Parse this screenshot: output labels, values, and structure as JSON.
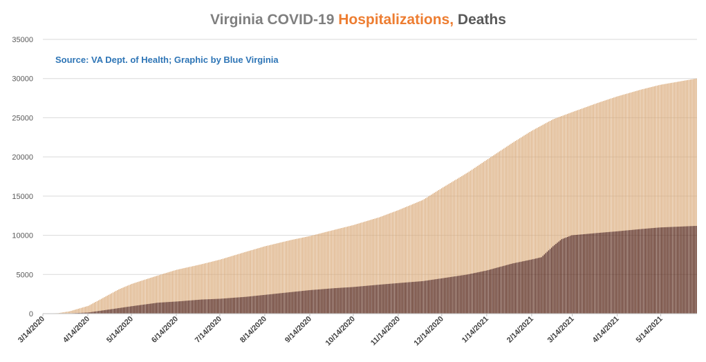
{
  "chart_data": {
    "type": "bar",
    "title_parts": [
      {
        "text": "Virginia COVID-19 ",
        "color": "#7f7f7f"
      },
      {
        "text": "Hospitalizations,",
        "color": "#ed7d31"
      },
      {
        "text": " Deaths",
        "color": "#595959"
      }
    ],
    "annotation": "Source: VA Dept. of Health; Graphic by Blue Virginia",
    "annotation_color": "#2e75b6",
    "x_start_date": "3/14/2020",
    "x_end_date": "6/8/2021",
    "x_tick_labels": [
      "3/14/2020",
      "4/14/2020",
      "5/14/2020",
      "6/14/2020",
      "7/14/2020",
      "8/14/2020",
      "9/14/2020",
      "10/14/2020",
      "11/14/2020",
      "12/14/2020",
      "1/14/2021",
      "2/14/2021",
      "3/14/2021",
      "4/14/2021",
      "5/14/2021"
    ],
    "ylim": [
      0,
      35000
    ],
    "y_ticks": [
      0,
      5000,
      10000,
      15000,
      20000,
      25000,
      30000,
      35000
    ],
    "grid": true,
    "series": [
      {
        "name": "Hospitalizations",
        "color": "#d9a876",
        "points": [
          [
            "3/14/2020",
            10
          ],
          [
            "3/24/2020",
            60
          ],
          [
            "4/1/2020",
            300
          ],
          [
            "4/14/2020",
            1000
          ],
          [
            "4/24/2020",
            2000
          ],
          [
            "5/5/2020",
            3100
          ],
          [
            "5/14/2020",
            3800
          ],
          [
            "5/24/2020",
            4400
          ],
          [
            "6/5/2020",
            5100
          ],
          [
            "6/14/2020",
            5600
          ],
          [
            "7/1/2020",
            6300
          ],
          [
            "7/14/2020",
            6900
          ],
          [
            "8/1/2020",
            7900
          ],
          [
            "8/14/2020",
            8600
          ],
          [
            "9/1/2020",
            9400
          ],
          [
            "9/14/2020",
            9900
          ],
          [
            "10/1/2020",
            10700
          ],
          [
            "10/14/2020",
            11300
          ],
          [
            "11/1/2020",
            12300
          ],
          [
            "11/14/2020",
            13200
          ],
          [
            "12/1/2020",
            14500
          ],
          [
            "12/14/2020",
            16000
          ],
          [
            "1/1/2021",
            18000
          ],
          [
            "1/14/2021",
            19600
          ],
          [
            "2/1/2021",
            21800
          ],
          [
            "2/14/2021",
            23300
          ],
          [
            "3/1/2021",
            24800
          ],
          [
            "3/14/2021",
            25700
          ],
          [
            "4/1/2021",
            26900
          ],
          [
            "4/14/2021",
            27700
          ],
          [
            "5/1/2021",
            28600
          ],
          [
            "5/14/2021",
            29200
          ],
          [
            "6/8/2021",
            30000
          ]
        ]
      },
      {
        "name": "Deaths",
        "color": "#4a1a10",
        "points": [
          [
            "3/14/2020",
            0
          ],
          [
            "3/24/2020",
            10
          ],
          [
            "4/1/2020",
            30
          ],
          [
            "4/14/2020",
            150
          ],
          [
            "5/1/2020",
            600
          ],
          [
            "5/14/2020",
            950
          ],
          [
            "6/1/2020",
            1400
          ],
          [
            "6/14/2020",
            1550
          ],
          [
            "7/1/2020",
            1800
          ],
          [
            "7/14/2020",
            1900
          ],
          [
            "8/1/2020",
            2150
          ],
          [
            "8/14/2020",
            2400
          ],
          [
            "9/1/2020",
            2750
          ],
          [
            "9/14/2020",
            3000
          ],
          [
            "10/1/2020",
            3250
          ],
          [
            "10/14/2020",
            3400
          ],
          [
            "11/1/2020",
            3700
          ],
          [
            "11/14/2020",
            3900
          ],
          [
            "12/1/2020",
            4150
          ],
          [
            "12/14/2020",
            4500
          ],
          [
            "1/1/2021",
            5000
          ],
          [
            "1/14/2021",
            5500
          ],
          [
            "2/1/2021",
            6400
          ],
          [
            "2/14/2021",
            6900
          ],
          [
            "2/21/2021",
            7200
          ],
          [
            "3/1/2021",
            8600
          ],
          [
            "3/7/2021",
            9500
          ],
          [
            "3/14/2021",
            10000
          ],
          [
            "4/1/2021",
            10300
          ],
          [
            "4/14/2021",
            10500
          ],
          [
            "5/1/2021",
            10800
          ],
          [
            "5/14/2021",
            11000
          ],
          [
            "6/8/2021",
            11200
          ]
        ]
      }
    ]
  }
}
